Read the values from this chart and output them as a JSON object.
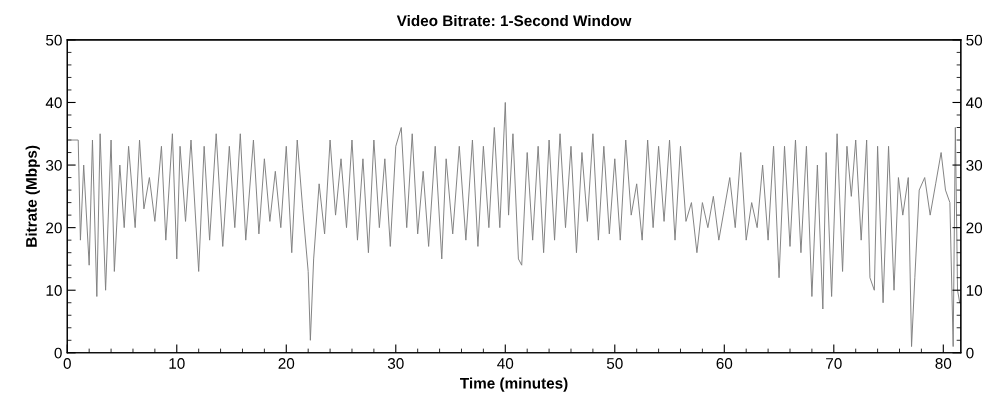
{
  "chart_data": {
    "type": "line",
    "title": "Video Bitrate: 1-Second Window",
    "xlabel": "Time (minutes)",
    "ylabel": "Bitrate (Mbps)",
    "xlim": [
      0,
      81.6
    ],
    "xticks": [
      0,
      10,
      20,
      30,
      40,
      50,
      60,
      70,
      80
    ],
    "ylim": [
      0,
      50
    ],
    "yticks": [
      0,
      10,
      20,
      30,
      40,
      50
    ],
    "y2lim": [
      0,
      50
    ],
    "y2ticks": [
      0,
      10,
      20,
      30,
      40,
      50
    ],
    "grid": false,
    "legend": false,
    "marker": "none",
    "line_style": "solid",
    "series": [
      {
        "color": "#808080",
        "x": [
          0,
          1.0,
          1.2,
          1.5,
          2,
          2.3,
          2.7,
          3,
          3.5,
          4,
          4.3,
          4.8,
          5.2,
          5.6,
          6.2,
          6.6,
          7,
          7.5,
          8,
          8.6,
          9,
          9.6,
          10,
          10.3,
          10.8,
          11.3,
          12,
          12.5,
          13,
          13.6,
          14.2,
          14.8,
          15.3,
          15.8,
          16.3,
          17,
          17.5,
          18,
          18.5,
          19,
          19.5,
          20,
          20.5,
          21,
          21.5,
          22,
          22.2,
          22.5,
          23,
          23.5,
          24,
          24.5,
          25,
          25.5,
          26,
          26.5,
          27,
          27.5,
          28,
          28.5,
          29,
          29.5,
          30,
          30.5,
          31,
          31.5,
          32,
          32.5,
          33,
          33.6,
          34.2,
          34.6,
          35.2,
          35.8,
          36.4,
          37,
          37.5,
          38,
          38.5,
          39,
          39.5,
          40,
          40.3,
          40.7,
          41.2,
          41.5,
          42,
          42.5,
          43,
          43.5,
          44,
          44.5,
          45,
          45.5,
          46,
          46.5,
          47,
          47.5,
          48,
          48.5,
          49,
          49.5,
          50,
          50.5,
          51,
          51.5,
          52,
          52.5,
          53,
          53.5,
          54,
          54.5,
          55,
          55.5,
          56,
          56.5,
          57,
          57.5,
          58,
          58.5,
          59,
          59.5,
          60,
          60.5,
          61,
          61.5,
          62,
          62.5,
          63,
          63.5,
          64,
          64.5,
          65,
          65.5,
          66,
          66.5,
          67,
          67.5,
          68,
          68.5,
          69,
          69.3,
          69.8,
          70.3,
          70.8,
          71.2,
          71.6,
          72,
          72.5,
          73,
          73.3,
          73.7,
          74,
          74.5,
          75,
          75.5,
          75.9,
          76.3,
          76.8,
          77.1,
          77.4,
          77.8,
          78.3,
          78.8,
          79.3,
          79.8,
          80.2,
          80.6,
          80.9,
          81.1,
          81.3,
          81.5
        ],
        "values": [
          34,
          34,
          18,
          30,
          14,
          34,
          9,
          35,
          10,
          34,
          13,
          30,
          20,
          33,
          20,
          34,
          23,
          28,
          21,
          33,
          18,
          35,
          15,
          33,
          21,
          34,
          13,
          33,
          18,
          35,
          17,
          33,
          20,
          35,
          18,
          34,
          19,
          31,
          21,
          29,
          20,
          33,
          16,
          34,
          23,
          13,
          2,
          15,
          27,
          19,
          34,
          22,
          31,
          20,
          34,
          18,
          31,
          16,
          34,
          20,
          31,
          17,
          33,
          36,
          20,
          35,
          19,
          29,
          17,
          33,
          15,
          31,
          19,
          33,
          18,
          34,
          17,
          33,
          20,
          36,
          20,
          40,
          22,
          35,
          15,
          14,
          32,
          18,
          33,
          16,
          34,
          18,
          35,
          20,
          33,
          16,
          32,
          21,
          35,
          18,
          33,
          19,
          31,
          18,
          34,
          22,
          27,
          18,
          34,
          20,
          33,
          21,
          34,
          18,
          33,
          21,
          24,
          16,
          24,
          20,
          25,
          18,
          23,
          28,
          20,
          32,
          18,
          24,
          20,
          30,
          18,
          33,
          12,
          33,
          17,
          34,
          16,
          33,
          9,
          30,
          7,
          32,
          9,
          35,
          13,
          33,
          25,
          34,
          18,
          34,
          12,
          10,
          33,
          8,
          33,
          10,
          28,
          22,
          28,
          1,
          12,
          26,
          28,
          22,
          27,
          32,
          26,
          24,
          1,
          36,
          10,
          8
        ]
      }
    ]
  }
}
